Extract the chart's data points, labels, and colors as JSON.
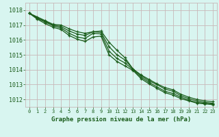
{
  "title": "Graphe pression niveau de la mer (hPa)",
  "background_color": "#d8f5f0",
  "grid_color": "#c8b8b8",
  "line_color": "#1a5c1a",
  "marker_color": "#1a5c1a",
  "xlim": [
    -0.5,
    23.5
  ],
  "ylim": [
    1011.5,
    1018.5
  ],
  "yticks": [
    1012,
    1013,
    1014,
    1015,
    1016,
    1017,
    1018
  ],
  "xticks": [
    0,
    1,
    2,
    3,
    4,
    5,
    6,
    7,
    8,
    9,
    10,
    11,
    12,
    13,
    14,
    15,
    16,
    17,
    18,
    19,
    20,
    21,
    22,
    23
  ],
  "series": [
    [
      1017.8,
      1017.55,
      1017.3,
      1017.05,
      1017.0,
      1016.75,
      1016.55,
      1016.45,
      1016.55,
      1016.6,
      1015.85,
      1015.3,
      1014.8,
      1014.05,
      1013.65,
      1013.35,
      1013.05,
      1012.8,
      1012.65,
      1012.35,
      1012.15,
      1012.0,
      1011.9,
      1011.85
    ],
    [
      1017.8,
      1017.5,
      1017.25,
      1017.0,
      1016.9,
      1016.6,
      1016.4,
      1016.3,
      1016.55,
      1016.5,
      1015.55,
      1015.0,
      1014.65,
      1014.05,
      1013.6,
      1013.25,
      1013.0,
      1012.7,
      1012.55,
      1012.25,
      1012.05,
      1011.9,
      1011.8,
      1011.75
    ],
    [
      1017.8,
      1017.45,
      1017.2,
      1016.95,
      1016.8,
      1016.45,
      1016.2,
      1016.1,
      1016.45,
      1016.4,
      1015.25,
      1014.75,
      1014.45,
      1014.0,
      1013.5,
      1013.15,
      1012.85,
      1012.55,
      1012.4,
      1012.15,
      1011.95,
      1011.8,
      1011.75,
      1011.7
    ],
    [
      1017.8,
      1017.4,
      1017.1,
      1016.85,
      1016.7,
      1016.3,
      1016.05,
      1015.9,
      1016.2,
      1016.25,
      1015.0,
      1014.55,
      1014.25,
      1013.95,
      1013.4,
      1013.05,
      1012.75,
      1012.45,
      1012.3,
      1012.05,
      1011.9,
      1011.75,
      1011.7,
      1011.65
    ]
  ]
}
